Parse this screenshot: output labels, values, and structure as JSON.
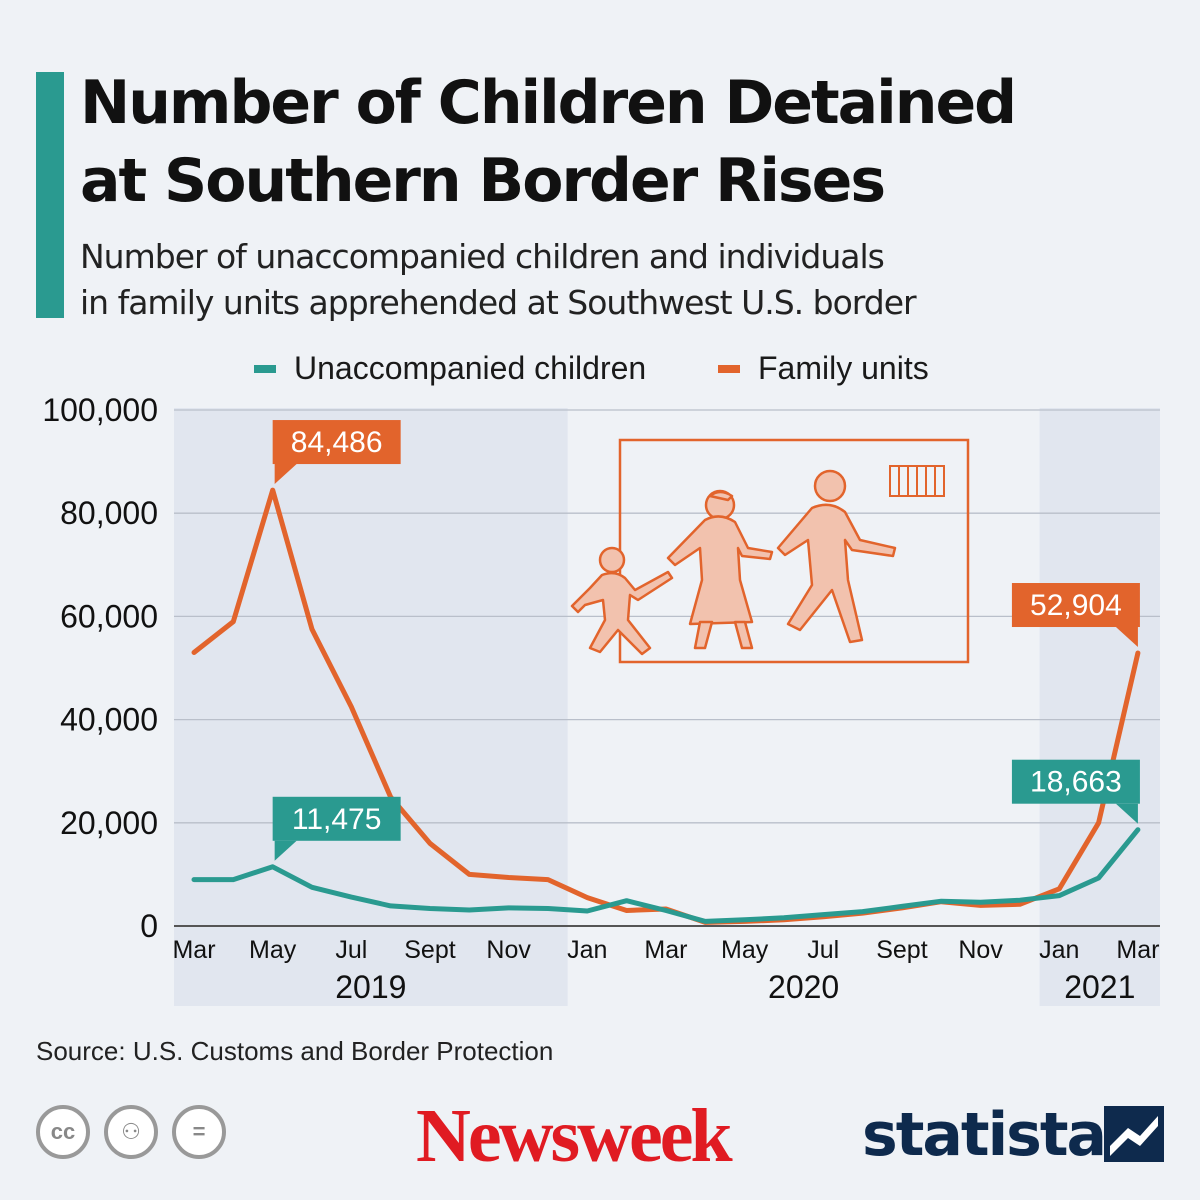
{
  "header": {
    "title_line1": "Number of Children Detained",
    "title_line2": "at Southern Border Rises",
    "subtitle_line1": "Number of unaccompanied children and individuals",
    "subtitle_line2": "in family units apprehended at Southwest U.S. border"
  },
  "colors": {
    "accent": "#2a9a90",
    "unaccompanied": "#2a9a90",
    "family": "#e2642c",
    "newsweek": "#e01b22",
    "statista": "#0e2a4d"
  },
  "chart_data": {
    "type": "line",
    "title": "Number of Children Detained at Southern Border Rises",
    "xlabel": "",
    "ylabel": "",
    "ylim": [
      0,
      100000
    ],
    "yticks": [
      "100,000",
      "80,000",
      "60,000",
      "40,000",
      "20,000",
      "0"
    ],
    "ytick_values": [
      100000,
      80000,
      60000,
      40000,
      20000,
      0
    ],
    "months": [
      "Mar 2019",
      "Apr 2019",
      "May 2019",
      "Jun 2019",
      "Jul 2019",
      "Aug 2019",
      "Sept 2019",
      "Oct 2019",
      "Nov 2019",
      "Dec 2019",
      "Jan 2020",
      "Feb 2020",
      "Mar 2020",
      "Apr 2020",
      "May 2020",
      "Jun 2020",
      "Jul 2020",
      "Aug 2020",
      "Sept 2020",
      "Oct 2020",
      "Nov 2020",
      "Dec 2020",
      "Jan 2021",
      "Feb 2021",
      "Mar 2021"
    ],
    "x_tick_labels": [
      "Mar",
      "May",
      "Jul",
      "Sept",
      "Nov",
      "Jan",
      "Mar",
      "May",
      "Jul",
      "Sept",
      "Nov",
      "Jan",
      "Mar"
    ],
    "x_tick_indices": [
      0,
      2,
      4,
      6,
      8,
      10,
      12,
      14,
      16,
      18,
      20,
      22,
      24
    ],
    "years": [
      {
        "label": "2019",
        "start": 0,
        "end": 9
      },
      {
        "label": "2020",
        "start": 10,
        "end": 21
      },
      {
        "label": "2021",
        "start": 22,
        "end": 24
      }
    ],
    "series": [
      {
        "name": "Unaccompanied children",
        "color": "#2a9a90",
        "values": [
          9000,
          9000,
          11475,
          7500,
          5600,
          3900,
          3400,
          3100,
          3500,
          3400,
          2900,
          4900,
          3000,
          900,
          1200,
          1600,
          2200,
          2800,
          3800,
          4800,
          4600,
          5000,
          5900,
          9300,
          18663
        ]
      },
      {
        "name": "Family units",
        "color": "#e2642c",
        "values": [
          53000,
          59000,
          84486,
          57500,
          42500,
          25000,
          16000,
          10000,
          9400,
          9000,
          5500,
          3000,
          3300,
          700,
          900,
          1200,
          1800,
          2500,
          3500,
          4700,
          4000,
          4200,
          7200,
          20000,
          52904
        ]
      }
    ],
    "annotations": [
      {
        "series": "Family units",
        "index": 2,
        "label": "84,486"
      },
      {
        "series": "Unaccompanied children",
        "index": 2,
        "label": "11,475"
      },
      {
        "series": "Family units",
        "index": 24,
        "label": "52,904"
      },
      {
        "series": "Unaccompanied children",
        "index": 24,
        "label": "18,663"
      }
    ]
  },
  "footer": {
    "source": "Source: U.S. Customs and Border Protection",
    "license_icons": [
      {
        "name": "cc-icon",
        "glyph": "cc"
      },
      {
        "name": "attribution-icon",
        "glyph": "⚇"
      },
      {
        "name": "no-derivatives-icon",
        "glyph": "="
      }
    ],
    "newsweek": "Newsweek",
    "statista": "statista"
  }
}
